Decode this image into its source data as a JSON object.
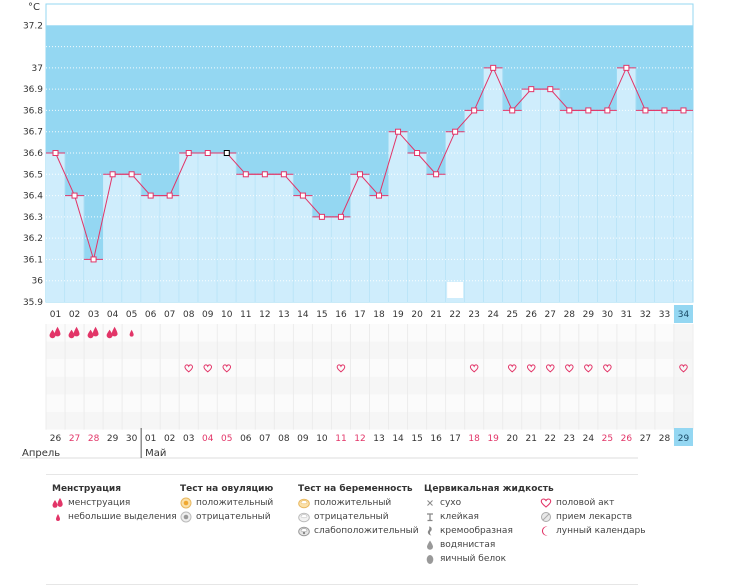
{
  "chart_data": {
    "type": "line",
    "ylabel": "°C",
    "ylim": [
      35.9,
      37.3
    ],
    "yticks": [
      "37.2",
      "37",
      "36.9",
      "36.8",
      "36.7",
      "36.6",
      "36.5",
      "36.4",
      "36.3",
      "36.2",
      "36.1",
      "36",
      "35.9"
    ],
    "cycle_days": [
      "01",
      "02",
      "03",
      "04",
      "05",
      "06",
      "07",
      "08",
      "09",
      "10",
      "11",
      "12",
      "13",
      "14",
      "15",
      "16",
      "17",
      "18",
      "19",
      "20",
      "21",
      "22",
      "23",
      "24",
      "25",
      "26",
      "27",
      "28",
      "29",
      "30",
      "31",
      "32",
      "33",
      "34"
    ],
    "temperatures": [
      36.6,
      36.4,
      36.1,
      36.5,
      36.5,
      36.4,
      36.4,
      36.6,
      36.6,
      36.6,
      36.5,
      36.5,
      36.5,
      36.4,
      36.3,
      36.3,
      36.5,
      36.4,
      36.7,
      36.6,
      36.5,
      36.7,
      36.8,
      37.0,
      36.8,
      36.9,
      36.9,
      36.8,
      36.8,
      36.8,
      37.0,
      36.8,
      36.8,
      36.8
    ],
    "dates": [
      "26",
      "27",
      "28",
      "29",
      "30",
      "01",
      "02",
      "03",
      "04",
      "05",
      "06",
      "07",
      "08",
      "09",
      "10",
      "11",
      "12",
      "13",
      "14",
      "15",
      "16",
      "17",
      "18",
      "19",
      "20",
      "21",
      "22",
      "23",
      "24",
      "25",
      "26",
      "27",
      "28",
      "29"
    ],
    "dates_red": [
      false,
      true,
      true,
      false,
      false,
      false,
      false,
      false,
      true,
      true,
      false,
      false,
      false,
      false,
      false,
      true,
      true,
      false,
      false,
      false,
      false,
      false,
      true,
      true,
      false,
      false,
      false,
      false,
      false,
      true,
      true,
      false,
      false,
      false
    ],
    "months": [
      {
        "label": "Апрель",
        "start_index": 0
      },
      {
        "label": "Май",
        "start_index": 5
      }
    ],
    "current_day_index": 33,
    "selected_point_index": 9,
    "moon_day_index": 21,
    "menstruation": [
      {
        "day_index": 0,
        "kind": "heavy"
      },
      {
        "day_index": 1,
        "kind": "heavy"
      },
      {
        "day_index": 2,
        "kind": "heavy"
      },
      {
        "day_index": 3,
        "kind": "heavy"
      },
      {
        "day_index": 4,
        "kind": "light"
      }
    ],
    "intercourse_days": [
      7,
      8,
      9,
      15,
      22,
      24,
      25,
      26,
      27,
      28,
      29,
      33
    ],
    "colors": {
      "sky": "#94d7f2",
      "bar": "#cfedfc",
      "bar_edge": "#a9ddf4",
      "line": "#e23568",
      "grid": "#e4f5fc",
      "current_day_bg": "#94d7f2",
      "red_date": "#e23568",
      "heart": "#e23568"
    }
  },
  "legend": {
    "menstruation": {
      "title": "Менструация",
      "items": [
        "менструация",
        "небольшие выделения"
      ]
    },
    "ovulation_test": {
      "title": "Тест на овуляцию",
      "items": [
        "положительный",
        "отрицательный"
      ]
    },
    "pregnancy_test": {
      "title": "Тест на беременность",
      "items": [
        "положительный",
        "отрицательный",
        "слабоположительный"
      ]
    },
    "cervical_fluid": {
      "title": "Цервикальная жидкость",
      "items": [
        "сухо",
        "клейкая",
        "кремообразная",
        "водянистая",
        "яичный белок"
      ]
    },
    "other": {
      "items": [
        "половой акт",
        "прием лекарств",
        "лунный календарь"
      ]
    }
  }
}
